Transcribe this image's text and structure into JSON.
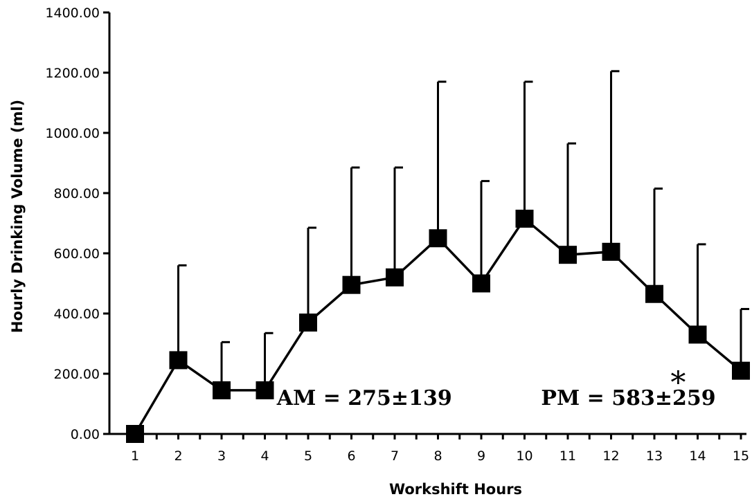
{
  "chart_data": {
    "type": "line",
    "title": "",
    "xlabel": "Workshift Hours",
    "ylabel": "Hourly Drinking Volume (ml)",
    "ylim": [
      0,
      1400
    ],
    "yticks": [
      "0.00",
      "200.00",
      "400.00",
      "600.00",
      "800.00",
      "1000.00",
      "1200.00",
      "1400.00"
    ],
    "x": [
      1,
      2,
      3,
      4,
      5,
      6,
      7,
      8,
      9,
      10,
      11,
      12,
      13,
      14,
      15
    ],
    "series": [
      {
        "name": "",
        "values": [
          0,
          245,
          145,
          145,
          370,
          495,
          520,
          650,
          500,
          715,
          595,
          605,
          465,
          330,
          210
        ],
        "error_upper": [
          0,
          560,
          305,
          335,
          685,
          885,
          885,
          1170,
          840,
          1170,
          965,
          1205,
          815,
          630,
          415
        ],
        "marker": "square",
        "color": "#000000"
      }
    ],
    "grid": false,
    "legend": "none",
    "annotations": [
      {
        "text": "AM = 275±139",
        "x": 6.3,
        "y": 120
      },
      {
        "text": "PM = 583±259",
        "x": 12.4,
        "y": 120
      },
      {
        "text": "*",
        "x": 13.55,
        "y": 200
      }
    ]
  }
}
